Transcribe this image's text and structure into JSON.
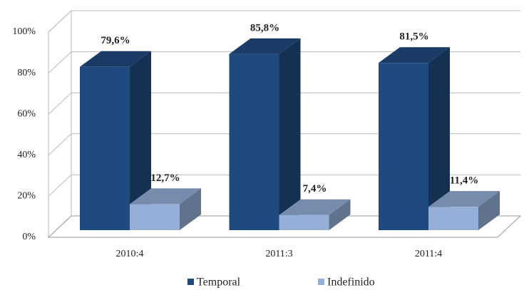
{
  "chart_data": {
    "type": "bar3d",
    "categories": [
      "2010:4",
      "2011:3",
      "2011:4"
    ],
    "series": [
      {
        "name": "Temporal",
        "color": "#1f4a80",
        "values": [
          79.6,
          85.8,
          81.5
        ],
        "value_labels": [
          "79,6%",
          "85,8%",
          "81,5%"
        ]
      },
      {
        "name": "Indefinido",
        "color": "#95afd8",
        "values": [
          12.7,
          7.4,
          11.4
        ],
        "value_labels": [
          "12,7%",
          "7,4%",
          "11,4%"
        ]
      }
    ],
    "ylim": [
      0,
      100
    ],
    "yticks": [
      {
        "value": 0,
        "label": "0%"
      },
      {
        "value": 20,
        "label": "20%"
      },
      {
        "value": 40,
        "label": "40%"
      },
      {
        "value": 60,
        "label": "60%"
      },
      {
        "value": 80,
        "label": "80%"
      },
      {
        "value": 100,
        "label": "100%"
      }
    ],
    "grid": true,
    "legend": "bottom"
  }
}
